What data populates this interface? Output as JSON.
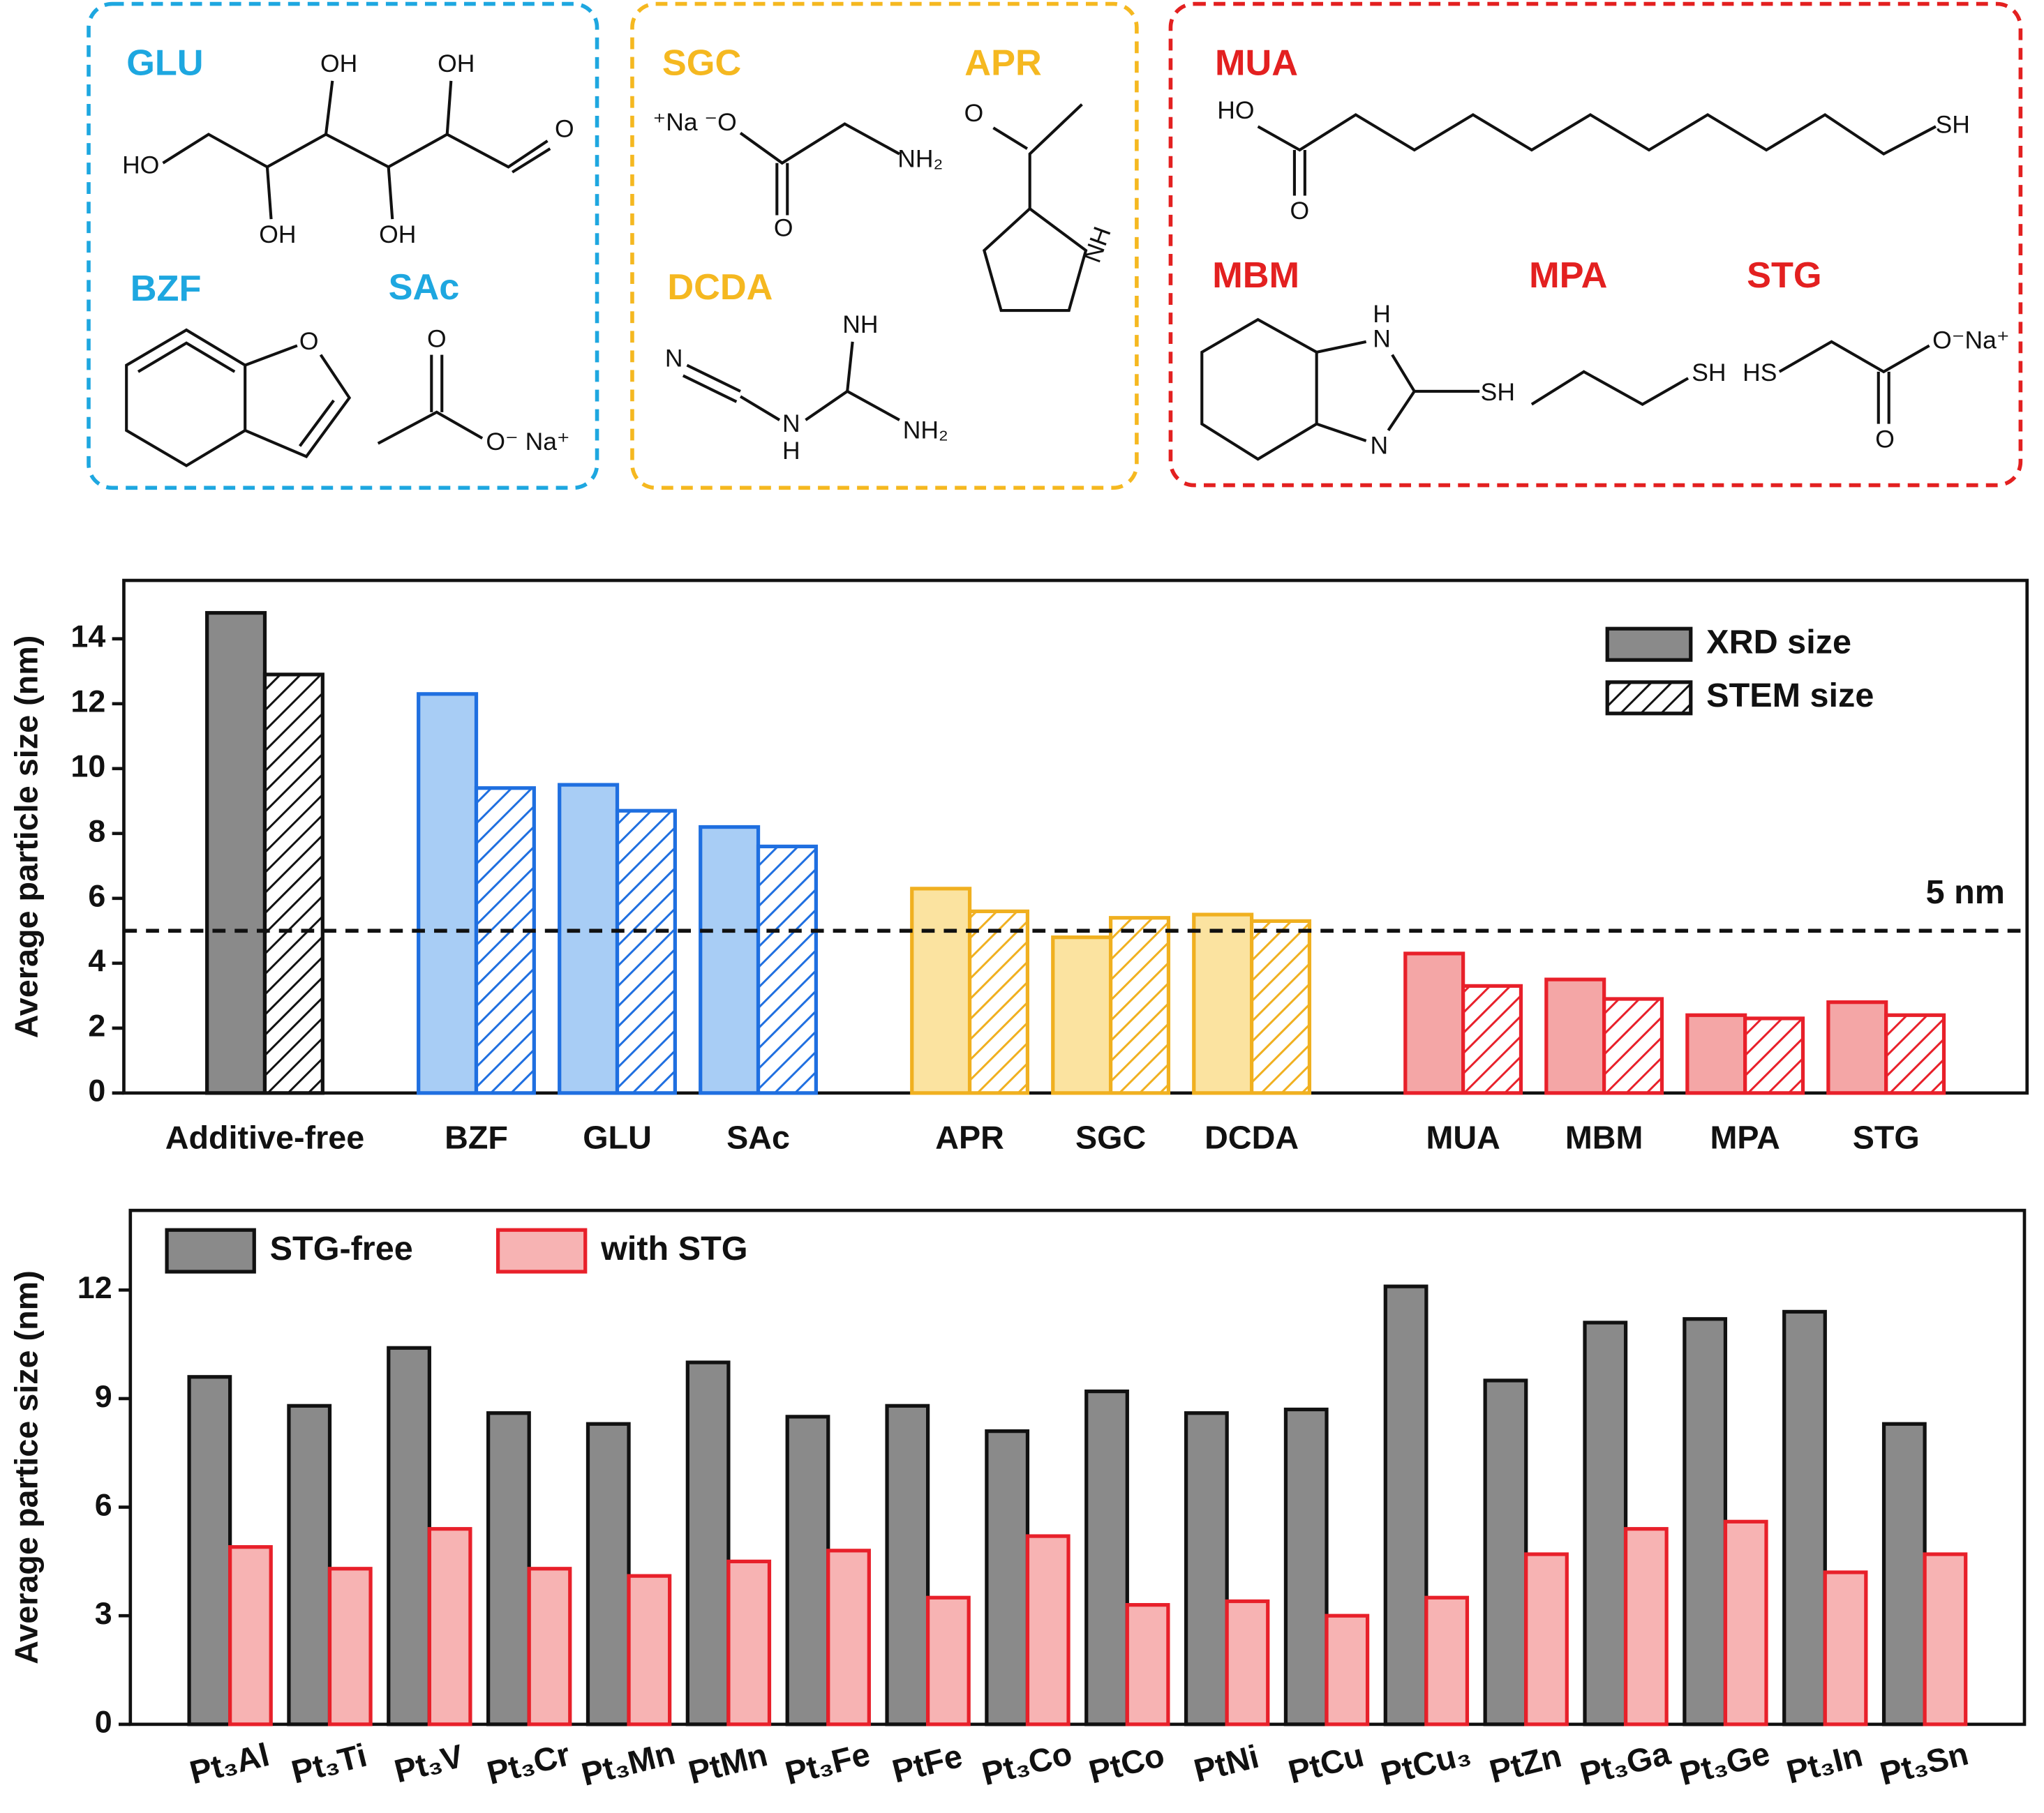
{
  "structures": {
    "groups": [
      {
        "color": "#1ea7e0",
        "molecules": [
          {
            "name": "GLU",
            "atoms": [
              "OH",
              "OH",
              "O",
              "HO",
              "OH",
              "OH"
            ]
          },
          {
            "name": "BZF",
            "atoms": [
              "O"
            ]
          },
          {
            "name": "SAc",
            "atoms": [
              "O",
              "O⁻ Na⁺"
            ]
          }
        ]
      },
      {
        "color": "#f5b820",
        "molecules": [
          {
            "name": "SGC",
            "atoms": [
              "⁺Na ⁻O",
              "O",
              "NH₂"
            ]
          },
          {
            "name": "APR",
            "atoms": [
              "O",
              "NH"
            ]
          },
          {
            "name": "DCDA",
            "atoms": [
              "N",
              "NH",
              "NH₂",
              "N",
              "H"
            ]
          }
        ]
      },
      {
        "color": "#e32020",
        "molecules": [
          {
            "name": "MUA",
            "atoms": [
              "HO",
              "O",
              "SH"
            ]
          },
          {
            "name": "MBM",
            "atoms": [
              "H",
              "N",
              "SH",
              "N"
            ]
          },
          {
            "name": "MPA",
            "atoms": [
              "SH"
            ]
          },
          {
            "name": "STG",
            "atoms": [
              "HS",
              "O⁻Na⁺",
              "O"
            ]
          }
        ]
      }
    ]
  },
  "chart_data": [
    {
      "type": "bar",
      "y_label": "Average particle size (nm)",
      "categories": [
        "Additive-free",
        "BZF",
        "GLU",
        "SAc",
        "APR",
        "SGC",
        "DCDA",
        "MUA",
        "MBM",
        "MPA",
        "STG"
      ],
      "colors": [
        "#111111",
        "#1f6fe0",
        "#1f6fe0",
        "#1f6fe0",
        "#f0b020",
        "#f0b020",
        "#f0b020",
        "#e8202a",
        "#e8202a",
        "#e8202a",
        "#e8202a"
      ],
      "fill_colors": [
        "#8a8a8a",
        "#a8cdf5",
        "#a8cdf5",
        "#a8cdf5",
        "#fbe3a0",
        "#fbe3a0",
        "#fbe3a0",
        "#f4a6a6",
        "#f4a6a6",
        "#f4a6a6",
        "#f4a6a6"
      ],
      "series": [
        {
          "name": "XRD size",
          "pattern": "solid",
          "color": "#8a8a8a",
          "edge_color": "#111111",
          "values": [
            14.8,
            12.3,
            9.5,
            8.2,
            6.3,
            4.8,
            5.5,
            4.3,
            3.5,
            2.4,
            2.8
          ]
        },
        {
          "name": "STEM size",
          "pattern": "hatch",
          "color": "#ffffff",
          "edge_color": "#111111",
          "values": [
            12.9,
            9.4,
            8.7,
            7.6,
            5.6,
            5.4,
            5.3,
            3.3,
            2.9,
            2.3,
            2.4
          ]
        }
      ],
      "ylim": [
        0,
        15.8
      ],
      "yticks": [
        0,
        2,
        4,
        6,
        8,
        10,
        12,
        14
      ],
      "reference_line": {
        "value": 5,
        "label": "5 nm"
      },
      "legend": "upper right"
    },
    {
      "type": "bar",
      "y_label": "Average partice size (nm)",
      "categories": [
        "Pt₃Al",
        "Pt₃Ti",
        "Pt₃V",
        "Pt₃Cr",
        "Pt₃Mn",
        "PtMn",
        "Pt₃Fe",
        "PtFe",
        "Pt₃Co",
        "PtCo",
        "PtNi",
        "PtCu",
        "PtCu₃",
        "PtZn",
        "Pt₃Ga",
        "Pt₃Ge",
        "Pt₃In",
        "Pt₃Sn"
      ],
      "series": [
        {
          "name": "STG-free",
          "pattern": "solid",
          "color": "#8a8a8a",
          "edge_color": "#111111",
          "values": [
            9.6,
            8.8,
            10.4,
            8.6,
            8.3,
            10.0,
            8.5,
            8.8,
            8.1,
            9.2,
            8.6,
            8.7,
            12.1,
            9.5,
            11.1,
            11.2,
            11.4,
            8.3
          ]
        },
        {
          "name": "with STG",
          "pattern": "solid",
          "color": "#f7b3b3",
          "edge_color": "#e8202a",
          "values": [
            4.9,
            4.3,
            5.4,
            4.3,
            4.1,
            4.5,
            4.8,
            3.5,
            5.2,
            3.3,
            3.4,
            3.0,
            3.5,
            4.7,
            5.4,
            5.6,
            4.2,
            4.7
          ]
        }
      ],
      "ylim": [
        0,
        14.2
      ],
      "yticks": [
        0,
        3,
        6,
        9,
        12
      ],
      "legend": "upper left"
    }
  ]
}
